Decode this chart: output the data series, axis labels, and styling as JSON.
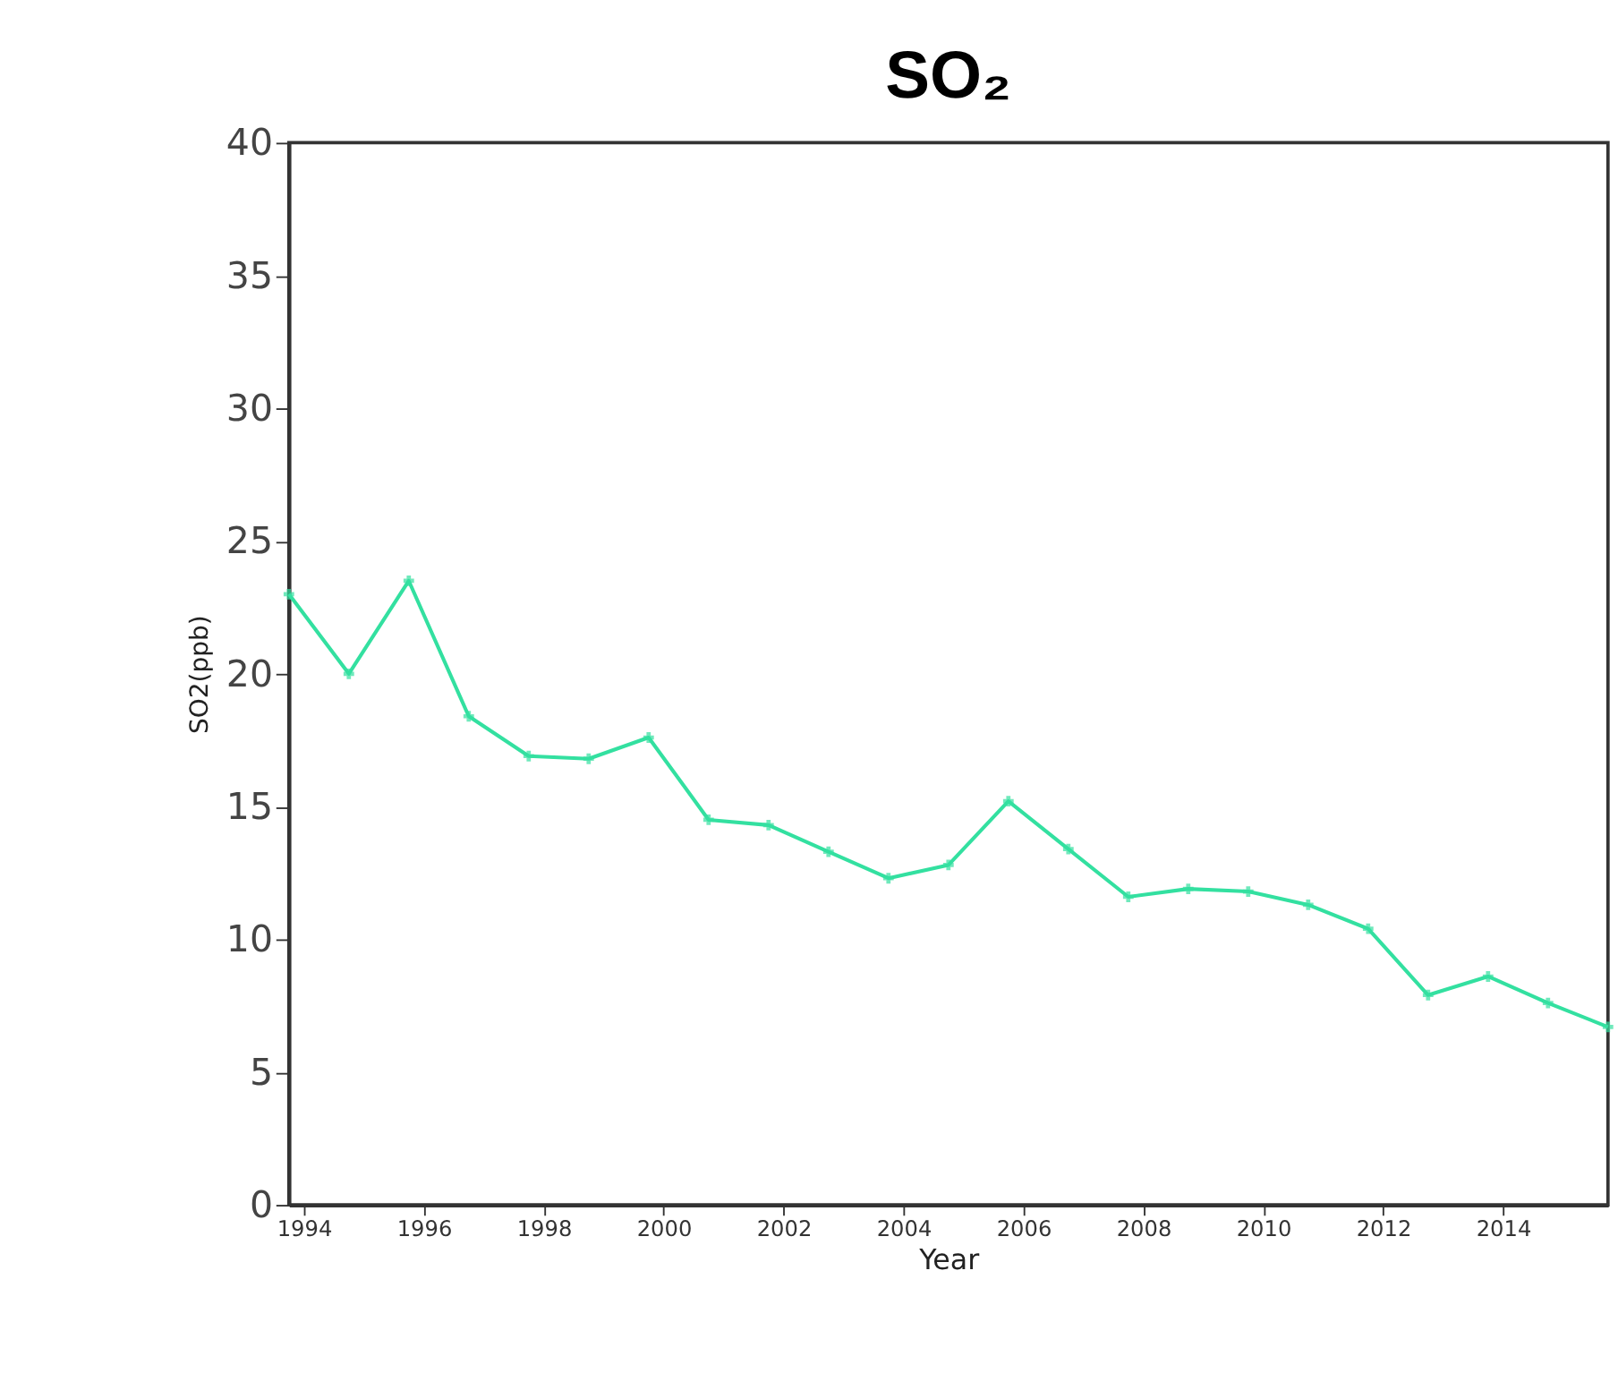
{
  "chart_data": {
    "type": "line",
    "title": "SO₂",
    "xlabel": "Year",
    "ylabel": "SO2(ppb)",
    "x": [
      1993.75,
      1994.75,
      1995.75,
      1996.75,
      1997.75,
      1998.75,
      1999.75,
      2000.75,
      2001.75,
      2002.75,
      2003.75,
      2004.75,
      2005.75,
      2006.75,
      2007.75,
      2008.75,
      2009.75,
      2010.75,
      2011.75,
      2012.75,
      2013.75,
      2014.75,
      2015.75
    ],
    "series": [
      {
        "color": "#33e0a0",
        "values": [
          23.0,
          20.0,
          23.5,
          18.4,
          16.9,
          16.8,
          17.6,
          14.5,
          14.3,
          13.3,
          12.3,
          12.8,
          15.2,
          13.4,
          11.6,
          11.9,
          11.8,
          11.3,
          10.4,
          7.9,
          8.6,
          7.6,
          6.7
        ]
      }
    ],
    "xlim": [
      1993.75,
      2015.75
    ],
    "xticks": [
      1994,
      1996,
      1998,
      2000,
      2002,
      2004,
      2006,
      2008,
      2010,
      2012,
      2014
    ],
    "ylim": [
      0,
      40
    ],
    "yticks": [
      0,
      5,
      10,
      15,
      20,
      25,
      30,
      35,
      40
    ],
    "grid": false,
    "marker": "cross",
    "line_style": "solid"
  }
}
